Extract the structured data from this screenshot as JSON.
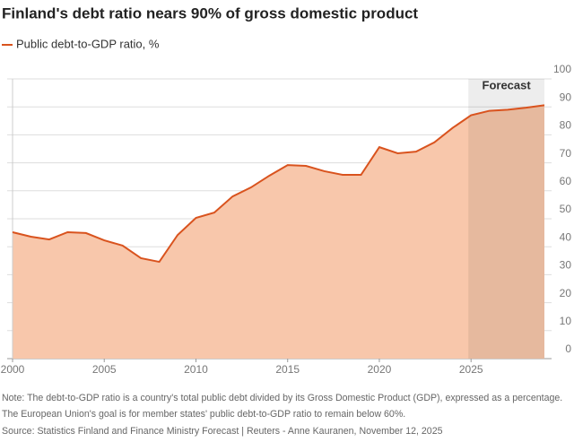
{
  "chart_data": {
    "type": "area-line",
    "title": "Finland's debt ratio nears 90% of gross domestic product",
    "x": [
      2000,
      2001,
      2002,
      2003,
      2004,
      2005,
      2006,
      2007,
      2008,
      2009,
      2010,
      2011,
      2012,
      2013,
      2014,
      2015,
      2016,
      2017,
      2018,
      2019,
      2020,
      2021,
      2022,
      2023,
      2024,
      2025,
      2026,
      2027,
      2028,
      2029
    ],
    "series": [
      {
        "name": "Public debt-to-GDP ratio, %",
        "color": "#d9531e",
        "fill": "#f8c7ab",
        "values": [
          45.2,
          43.6,
          42.6,
          45.2,
          44.9,
          42.3,
          40.4,
          35.9,
          34.6,
          44.2,
          50.3,
          52.2,
          58.0,
          61.2,
          65.4,
          69.2,
          68.9,
          67.0,
          65.7,
          65.7,
          75.6,
          73.4,
          74.0,
          77.3,
          82.5,
          87.0,
          88.6,
          89.0,
          89.7,
          90.6
        ]
      }
    ],
    "xlim": [
      2000,
      2029
    ],
    "xticks": [
      2000,
      2005,
      2010,
      2015,
      2020,
      2025
    ],
    "ylim": [
      0,
      100
    ],
    "yticks": [
      0,
      10,
      20,
      30,
      40,
      50,
      60,
      70,
      80,
      90,
      100
    ],
    "grid": true,
    "forecast": {
      "label": "Forecast",
      "from": 2025,
      "to": 2029
    },
    "notes": [
      "Note: The debt-to-GDP ratio is a country's total public debt divided by its Gross Domestic Product (GDP), expressed as a percentage.",
      "The European Union's goal is for member states' public debt-to-GDP ratio to remain below 60%."
    ],
    "source": "Source: Statistics Finland and Finance Ministry Forecast | Reuters - Anne Kauranen, November 12, 2025"
  }
}
